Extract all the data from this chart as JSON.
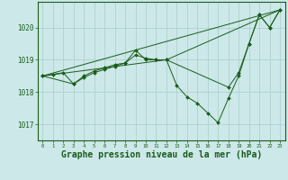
{
  "background_color": "#cce8e8",
  "grid_color": "#aacccc",
  "line_color": "#1a5c1a",
  "marker_color": "#1a5c1a",
  "xlabel": "Graphe pression niveau de la mer (hPa)",
  "xlabel_fontsize": 7,
  "xlim": [
    -0.5,
    23.5
  ],
  "ylim": [
    1016.5,
    1020.8
  ],
  "yticks": [
    1017,
    1018,
    1019,
    1020
  ],
  "xticks": [
    0,
    1,
    2,
    3,
    4,
    5,
    6,
    7,
    8,
    9,
    10,
    11,
    12,
    13,
    14,
    15,
    16,
    17,
    18,
    19,
    20,
    21,
    22,
    23
  ],
  "series": [
    {
      "x": [
        0,
        1,
        2,
        3,
        4,
        5,
        6,
        7,
        8,
        9,
        10,
        11,
        12,
        13,
        14,
        15,
        16,
        17,
        18,
        19,
        20,
        21,
        22,
        23
      ],
      "y": [
        1018.5,
        1018.55,
        1018.6,
        1018.25,
        1018.5,
        1018.65,
        1018.75,
        1018.85,
        1018.9,
        1019.3,
        1019.0,
        1019.0,
        1019.0,
        1018.2,
        1017.85,
        1017.65,
        1017.35,
        1017.05,
        1017.8,
        1018.5,
        1019.5,
        1020.4,
        1020.0,
        1020.55
      ],
      "has_markers": true
    },
    {
      "x": [
        0,
        3,
        4,
        5,
        6,
        7,
        8,
        9,
        10,
        11,
        12,
        18,
        19,
        20,
        21,
        22,
        23
      ],
      "y": [
        1018.5,
        1018.25,
        1018.45,
        1018.6,
        1018.7,
        1018.8,
        1018.9,
        1019.15,
        1019.05,
        1019.0,
        1019.0,
        1018.15,
        1018.6,
        1019.5,
        1020.4,
        1020.0,
        1020.55
      ],
      "has_markers": true
    },
    {
      "x": [
        0,
        23
      ],
      "y": [
        1018.5,
        1020.55
      ],
      "has_markers": false
    },
    {
      "x": [
        0,
        12,
        23
      ],
      "y": [
        1018.5,
        1019.0,
        1020.55
      ],
      "has_markers": false
    }
  ]
}
